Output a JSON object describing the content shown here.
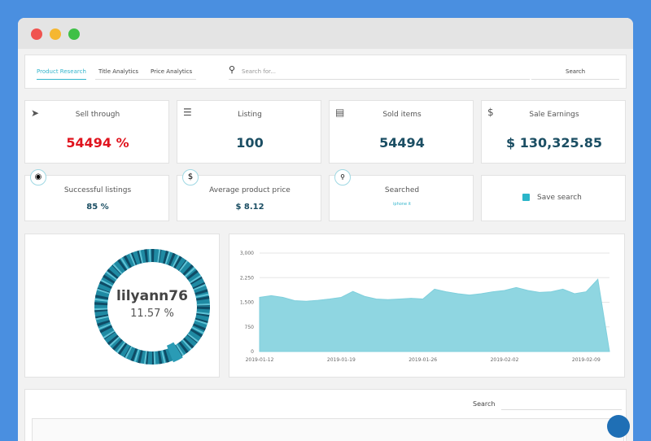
{
  "tabs": [
    "Product Research",
    "Title Analytics",
    "Price Analytics"
  ],
  "search": {
    "placeholder": "Search for...",
    "button": "Search"
  },
  "stats": [
    {
      "label": "Sell through",
      "value": "54494 %"
    },
    {
      "label": "Listing",
      "value": "100"
    },
    {
      "label": "Sold items",
      "value": "54494"
    },
    {
      "label": "Sale Earnings",
      "value": "$ 130,325.85"
    }
  ],
  "cards": [
    {
      "label": "Successful listings",
      "value": "85 %"
    },
    {
      "label": "Average product price",
      "value": "$ 8.12"
    },
    {
      "label": "Searched",
      "value": "iphone it"
    },
    {
      "label": "Save search"
    }
  ],
  "donut": {
    "title": "lilyann76",
    "subtitle": "11.57 %"
  },
  "chart_data": {
    "type": "area",
    "color": "#8fd6e1",
    "x": [
      "2019-01-12",
      "2019-01-13",
      "2019-01-14",
      "2019-01-15",
      "2019-01-16",
      "2019-01-17",
      "2019-01-18",
      "2019-01-19",
      "2019-01-20",
      "2019-01-21",
      "2019-01-22",
      "2019-01-23",
      "2019-01-24",
      "2019-01-25",
      "2019-01-26",
      "2019-01-27",
      "2019-01-28",
      "2019-01-29",
      "2019-01-30",
      "2019-01-31",
      "2019-02-01",
      "2019-02-02",
      "2019-02-03",
      "2019-02-04",
      "2019-02-05",
      "2019-02-06",
      "2019-02-07",
      "2019-02-08",
      "2019-02-09",
      "2019-02-10",
      "2019-02-11"
    ],
    "values": [
      1650,
      1700,
      1650,
      1550,
      1530,
      1560,
      1600,
      1650,
      1830,
      1680,
      1600,
      1580,
      1600,
      1620,
      1600,
      1900,
      1820,
      1760,
      1720,
      1760,
      1820,
      1860,
      1950,
      1860,
      1800,
      1820,
      1900,
      1760,
      1820,
      2200,
      0
    ],
    "xticks": [
      "2019-01-12",
      "2019-01-19",
      "2019-01-26",
      "2019-02-02",
      "2019-02-09"
    ],
    "ylim": [
      0,
      3000
    ],
    "yticks": [
      0,
      750,
      {
        "value": 1500,
        "label": "1,500"
      },
      {
        "value": 2250,
        "label": "2,250"
      },
      {
        "value": 3000,
        "label": "3,000"
      }
    ],
    "grid": true
  },
  "table": {
    "search_label": "Search"
  }
}
